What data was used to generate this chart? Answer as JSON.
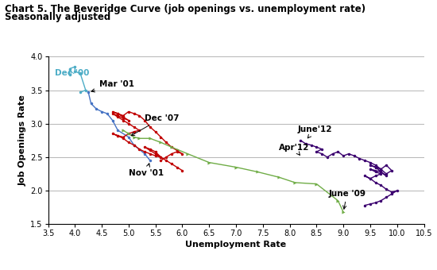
{
  "title1": "Chart 5. The Beveridge Curve (job openings vs. unemployment rate)",
  "title2": "Seasonally adjusted",
  "xlabel": "Unemployment Rate",
  "ylabel": "Job Openings Rate",
  "xlim": [
    3.5,
    10.5
  ],
  "ylim": [
    1.5,
    4.0
  ],
  "xticks": [
    3.5,
    4.0,
    4.5,
    5.0,
    5.5,
    6.0,
    6.5,
    7.0,
    7.5,
    8.0,
    8.5,
    9.0,
    9.5,
    10.0,
    10.5
  ],
  "yticks": [
    1.5,
    2.0,
    2.5,
    3.0,
    3.5,
    4.0
  ],
  "colors": {
    "dec00_feb01": "#4BACC6",
    "mar01_nov01": "#4472C4",
    "dec01_nov07": "#C00000",
    "dec07_jun09": "#70AD47",
    "jul09_jun12": "#3B006F"
  },
  "dec00_feb01_x": [
    3.9,
    3.9,
    4.0,
    4.0,
    4.1,
    4.2,
    4.1
  ],
  "dec00_feb01_y": [
    3.73,
    3.82,
    3.85,
    3.78,
    3.75,
    3.5,
    3.47
  ],
  "mar01_nov01_x": [
    4.25,
    4.3,
    4.4,
    4.5,
    4.6,
    4.7,
    4.8,
    5.0,
    5.1,
    5.3,
    5.4
  ],
  "mar01_nov01_y": [
    3.47,
    3.3,
    3.22,
    3.18,
    3.15,
    3.05,
    2.9,
    2.8,
    2.68,
    2.55,
    2.45
  ],
  "dec01_nov07_x": [
    5.6,
    5.7,
    5.8,
    5.9,
    6.0,
    5.9,
    5.8,
    5.7,
    5.6,
    5.5,
    5.4,
    5.3,
    5.2,
    5.1,
    5.0,
    4.9,
    4.8,
    4.7,
    4.8,
    4.9,
    5.0,
    4.9,
    4.8,
    4.7,
    4.8,
    4.9,
    5.0,
    5.1,
    5.2,
    5.1,
    5.0,
    4.9,
    4.8,
    4.7,
    4.8,
    4.9,
    5.0,
    5.1,
    5.2,
    5.3,
    5.4,
    5.5,
    5.6,
    5.5,
    5.4,
    5.3,
    5.4,
    5.5,
    5.6,
    5.7,
    5.8,
    5.9,
    6.0
  ],
  "dec01_nov07_y": [
    2.45,
    2.5,
    2.55,
    2.58,
    2.55,
    2.6,
    2.65,
    2.72,
    2.8,
    2.88,
    2.95,
    3.05,
    3.12,
    3.15,
    3.18,
    3.12,
    3.15,
    3.18,
    3.15,
    3.1,
    3.05,
    3.08,
    3.12,
    3.15,
    3.1,
    3.05,
    3.0,
    2.95,
    2.9,
    2.88,
    2.85,
    2.8,
    2.82,
    2.85,
    2.82,
    2.78,
    2.72,
    2.68,
    2.62,
    2.58,
    2.55,
    2.52,
    2.5,
    2.58,
    2.62,
    2.65,
    2.6,
    2.55,
    2.5,
    2.45,
    2.4,
    2.35,
    2.3
  ],
  "dec07_jun09_x": [
    4.9,
    5.0,
    5.1,
    5.2,
    5.4,
    5.6,
    5.8,
    6.1,
    6.5,
    7.0,
    7.4,
    7.8,
    8.1,
    8.5,
    8.9,
    9.0
  ],
  "dec07_jun09_y": [
    2.9,
    2.85,
    2.8,
    2.78,
    2.78,
    2.72,
    2.65,
    2.55,
    2.42,
    2.35,
    2.28,
    2.2,
    2.12,
    2.1,
    1.85,
    1.68
  ],
  "jul09_jun12_x": [
    9.4,
    9.5,
    9.6,
    9.7,
    9.8,
    9.9,
    10.0,
    9.9,
    9.8,
    9.7,
    9.6,
    9.5,
    9.4,
    9.5,
    9.6,
    9.7,
    9.6,
    9.5,
    9.7,
    9.8,
    9.7,
    9.6,
    9.5,
    9.6,
    9.7,
    9.8,
    9.9,
    9.8,
    9.7,
    9.6,
    9.5,
    9.4,
    9.3,
    9.2,
    9.1,
    9.0,
    8.9,
    8.8,
    8.7,
    8.6,
    8.5,
    8.6,
    8.5,
    8.4,
    8.3,
    8.2
  ],
  "jul09_jun12_y": [
    1.78,
    1.8,
    1.82,
    1.85,
    1.9,
    1.95,
    2.0,
    1.98,
    2.02,
    2.08,
    2.12,
    2.18,
    2.22,
    2.18,
    2.22,
    2.25,
    2.28,
    2.32,
    2.28,
    2.22,
    2.28,
    2.35,
    2.38,
    2.35,
    2.32,
    2.38,
    2.3,
    2.25,
    2.32,
    2.38,
    2.42,
    2.45,
    2.48,
    2.52,
    2.55,
    2.52,
    2.58,
    2.55,
    2.5,
    2.55,
    2.58,
    2.62,
    2.65,
    2.68,
    2.7,
    2.75
  ]
}
